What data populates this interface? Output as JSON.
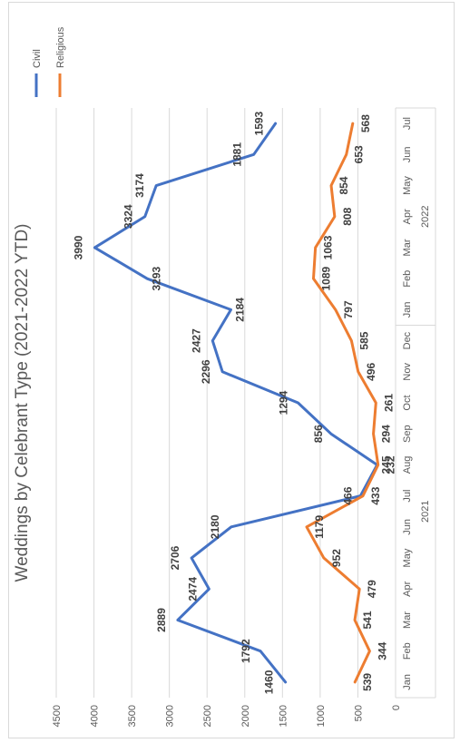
{
  "chart_data": {
    "type": "line",
    "title": "Weddings by Celebrant Type (2021-2022 YTD)",
    "xlabel": "",
    "ylabel": "",
    "ylim": [
      0,
      4500
    ],
    "y_ticks": [
      "0",
      "500",
      "1000",
      "1500",
      "2000",
      "2500",
      "3000",
      "3500",
      "4000",
      "4500"
    ],
    "grid": true,
    "legend_position": "top-right",
    "categories": [
      "Jan",
      "Feb",
      "Mar",
      "Apr",
      "May",
      "Jun",
      "Jul",
      "Aug",
      "Sep",
      "Oct",
      "Nov",
      "Dec",
      "Jan",
      "Feb",
      "Mar",
      "Apr",
      "May",
      "Jun",
      "Jul"
    ],
    "year_groups": [
      {
        "label": "2021",
        "count": 12
      },
      {
        "label": "2022",
        "count": 7
      }
    ],
    "series": [
      {
        "name": "Civil",
        "color": "#4472C4",
        "values": [
          1460,
          1792,
          2889,
          2474,
          2706,
          2180,
          466,
          245,
          856,
          1294,
          2296,
          2427,
          2184,
          3293,
          3990,
          3324,
          3174,
          1881,
          1593
        ]
      },
      {
        "name": "Religious",
        "color": "#ED7D31",
        "values": [
          539,
          344,
          541,
          479,
          952,
          1179,
          433,
          232,
          294,
          261,
          496,
          585,
          797,
          1089,
          1063,
          808,
          854,
          653,
          568
        ]
      }
    ]
  }
}
